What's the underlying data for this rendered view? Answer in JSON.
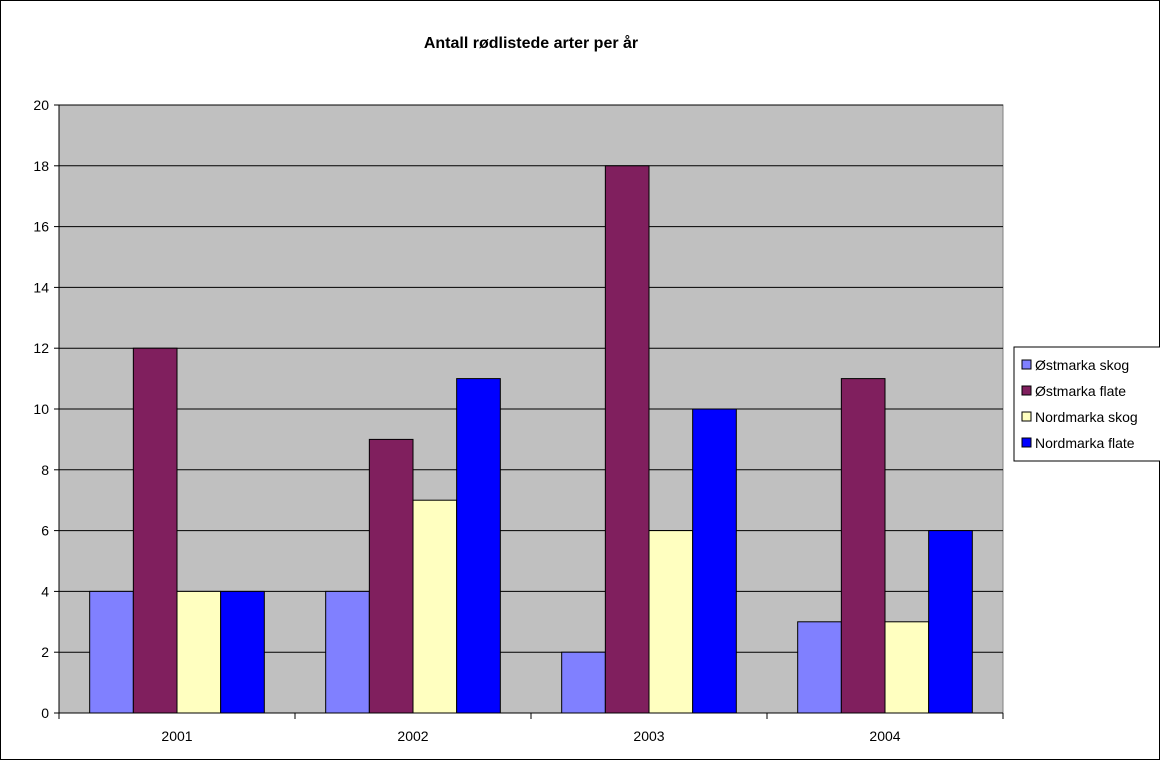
{
  "chart_data": {
    "type": "bar",
    "title": "Antall rødlistede arter per år",
    "xlabel": "",
    "ylabel": "",
    "categories": [
      "2001",
      "2002",
      "2003",
      "2004"
    ],
    "series": [
      {
        "name": "Østmarka skog",
        "values": [
          4,
          4,
          2,
          3
        ],
        "color": "#8080FF"
      },
      {
        "name": "Østmarka flate",
        "values": [
          12,
          9,
          18,
          11
        ],
        "color": "#801F5E"
      },
      {
        "name": "Nordmarka skog",
        "values": [
          4,
          7,
          6,
          3
        ],
        "color": "#FFFFC0"
      },
      {
        "name": "Nordmarka flate",
        "values": [
          4,
          11,
          10,
          6
        ],
        "color": "#0000FF"
      }
    ],
    "ylim": [
      0,
      20
    ],
    "yticks": [
      "0",
      "2",
      "4",
      "6",
      "8",
      "10",
      "12",
      "14",
      "16",
      "18",
      "20"
    ],
    "grid": true,
    "legend_position": "right",
    "plot_background": "#C0C0C0"
  }
}
